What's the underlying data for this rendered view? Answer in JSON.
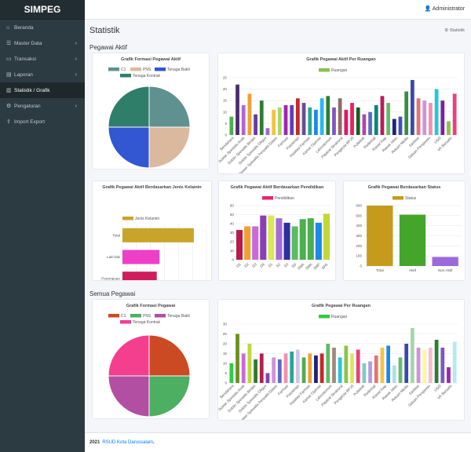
{
  "app": {
    "title": "SIMPEG"
  },
  "topbar": {
    "user": "Administrator"
  },
  "sidebar": {
    "items": [
      {
        "label": "Beranda",
        "icon": "home-icon",
        "glyph": "⌂",
        "chev": ""
      },
      {
        "label": "Master Data",
        "icon": "sliders-icon",
        "glyph": "☰",
        "chev": "‹"
      },
      {
        "label": "Transaksi",
        "icon": "inbox-icon",
        "glyph": "▭",
        "chev": "‹"
      },
      {
        "label": "Laporan",
        "icon": "print-icon",
        "glyph": "▤",
        "chev": "‹"
      },
      {
        "label": "Statistik / Grafik",
        "icon": "chart-icon",
        "glyph": "▥",
        "chev": ""
      },
      {
        "label": "Pengaturan",
        "icon": "gear-icon",
        "glyph": "⚙",
        "chev": "‹"
      },
      {
        "label": "Import Export",
        "icon": "upload-icon",
        "glyph": "⇪",
        "chev": ""
      }
    ]
  },
  "page": {
    "title": "Statistik",
    "breadcrumb": "Statistik",
    "section_active": "Pegawai Aktif",
    "section_all": "Semua Pegawai"
  },
  "footer": {
    "year": "2021",
    "org": "RSUD Kota Darussalam",
    "dot": "."
  },
  "chart_data": [
    {
      "id": "pie_aktif",
      "type": "pie",
      "title": "Grafik Formasi Pegawai Aktif",
      "categories": [
        "C1",
        "PNS",
        "Tenaga Bakti",
        "Tenaga Kontrak"
      ],
      "values": [
        25,
        25,
        25,
        25
      ],
      "colors": [
        "#5f9190",
        "#dbb99f",
        "#3257d3",
        "#2f7e6a"
      ]
    },
    {
      "id": "bar_ruangan_aktif",
      "type": "bar",
      "title": "Grafik Pegawai Aktif Per Ruangan",
      "legend": "Ruangan",
      "legend_color": "#8bc34a",
      "ylim": [
        0,
        25
      ],
      "yticks": [
        0,
        5,
        10,
        15,
        20,
        25
      ],
      "tick_labels": [
        "Bendahara",
        "Dokter Spesialis Anak",
        "Dokter Spesialis Bedah",
        "Dokter Spesialis Obgyn",
        "Dokter Spesialis Penyakit Dalam",
        "Farmasi",
        "Fisioterapi",
        "Instalasi Farmasi",
        "Kamar Operasi",
        "Laboratorium",
        "Pejabat Struktural",
        "Pengelola BPJS",
        "Poliklinik",
        "Radiologi",
        "Rawat Inap",
        "Rawat Jalan",
        "Rekam Medis",
        "Sanitasi",
        "Satuan Pengawas",
        "UGD",
        "VK Bersalin"
      ],
      "values": [
        8,
        22,
        13,
        18,
        9,
        15,
        3,
        11,
        12,
        13,
        13,
        16,
        14,
        12,
        11,
        16,
        17,
        12,
        16,
        11,
        14,
        12,
        9,
        10,
        13,
        17,
        14,
        7,
        8,
        19,
        24,
        16,
        15,
        14,
        20,
        15,
        6,
        18
      ],
      "colors": [
        "#4caf50",
        "#4a2c6e",
        "#b265d0",
        "#f0a030",
        "#6a3a9c",
        "#2e7d32",
        "#9c6ad8",
        "#f5c242",
        "#a8d86a",
        "#9c27b0",
        "#673ab7",
        "#c62828",
        "#6d4c91",
        "#26a69a",
        "#1e88e5",
        "#29b6f6",
        "#2e7d32",
        "#7e57c2",
        "#8d6e63",
        "#d81b60",
        "#e91e63",
        "#1b5e20",
        "#ab47bc",
        "#5c6bc0",
        "#00897b",
        "#c2185b",
        "#66bb6a",
        "#1a237e",
        "#3f51b5",
        "#388e3c",
        "#3949ab",
        "#e57373",
        "#ce93d8",
        "#f48fb1",
        "#26c6da",
        "#7b1fa2",
        "#8bc34a",
        "#ec407a"
      ]
    },
    {
      "id": "hbar_jk",
      "type": "bar",
      "orientation": "horizontal",
      "title": "Grafik Pegawai Aktif Berdasarkan Jenis Kelamin",
      "legend": "Jenis Kelamin",
      "legend_color": "#c8a52a",
      "xlim": [
        0,
        600
      ],
      "xticks": [
        0,
        100,
        200,
        300,
        400,
        500,
        600
      ],
      "categories": [
        "Total",
        "Laki-laki",
        "Perempuan"
      ],
      "values": [
        510,
        265,
        245
      ],
      "colors": [
        "#c8a52a",
        "#ee3fc8",
        "#d01b5c"
      ]
    },
    {
      "id": "bar_pendidikan",
      "type": "bar",
      "title": "Grafik Pegawai Aktif Berdasarkan Pendidikan",
      "legend": "Pendidikan",
      "legend_color": "#e8246f",
      "ylim": [
        0,
        60
      ],
      "yticks": [
        0,
        10,
        20,
        30,
        40,
        50,
        60
      ],
      "categories": [
        "D1",
        "D2",
        "D3",
        "D4",
        "S1",
        "S2",
        "S3",
        "SD",
        "SMA",
        "SMK",
        "SMP",
        "SPK"
      ],
      "values": [
        33,
        37,
        37,
        49,
        49,
        46,
        41,
        37,
        45,
        46,
        41,
        51
      ],
      "colors": [
        "#b81b4c",
        "#f0a030",
        "#c96ad8",
        "#8a3fb2",
        "#d8e85a",
        "#a56ad8",
        "#2e2e9c",
        "#5dbb63",
        "#4caf50",
        "#4caf50",
        "#1e88e5",
        "#c0d83a"
      ]
    },
    {
      "id": "bar_status",
      "type": "bar",
      "title": "Grafik Pegawai Berdasarkan Status",
      "legend": "Status",
      "legend_color": "#c69a1b",
      "ylim": [
        0,
        600
      ],
      "yticks": [
        0,
        100,
        200,
        300,
        400,
        500,
        600
      ],
      "categories": [
        "Total",
        "Aktif",
        "Non Aktif"
      ],
      "values": [
        600,
        510,
        90
      ],
      "colors": [
        "#c69a1b",
        "#44a52a",
        "#9c6ad8"
      ]
    },
    {
      "id": "pie_semua",
      "type": "pie",
      "title": "Grafik Formasi Pegawai",
      "categories": [
        "C1",
        "PNS",
        "Tenaga Bakti",
        "Tenaga Kontrak"
      ],
      "values": [
        25,
        25,
        25,
        25
      ],
      "colors": [
        "#cc4a23",
        "#4caf62",
        "#b24fa2",
        "#f43f8f"
      ]
    },
    {
      "id": "bar_ruangan_semua",
      "type": "bar",
      "title": "Grafik Pegawai Per Ruangan",
      "legend": "Ruangan",
      "legend_color": "#2ecc40",
      "ylim": [
        0,
        30
      ],
      "yticks": [
        0,
        5,
        10,
        15,
        20,
        25,
        30
      ],
      "tick_labels": [
        "Bendahara",
        "Dokter Spesialis Anak",
        "Dokter Spesialis Bedah",
        "Dokter Spesialis Obgyn",
        "Dokter Spesialis Penyakit Dalam",
        "Farmasi",
        "Fisioterapi",
        "Instalasi Farmasi",
        "Kamar Operasi",
        "Laboratorium",
        "Pejabat Struktural",
        "Pengelola BPJS",
        "Poliklinik",
        "Radiologi",
        "Rawat Inap",
        "Rawat Jalan",
        "Rekam Medis",
        "Sanitasi",
        "Satuan Pengawas",
        "UGD",
        "VK Bersalin"
      ],
      "values": [
        10,
        25,
        15,
        20,
        12,
        15,
        5,
        13,
        12,
        15,
        16,
        17,
        13,
        15,
        14,
        15,
        20,
        18,
        13,
        19,
        15,
        17,
        10,
        11,
        14,
        18,
        19,
        9,
        13,
        20,
        28,
        18,
        17,
        18,
        22,
        18,
        8,
        21
      ],
      "colors": [
        "#2ecc40",
        "#6b8e23",
        "#c96ad8",
        "#c0d83a",
        "#2e7d32",
        "#b81b4c",
        "#8a3fb2",
        "#ce93d8",
        "#5c6bc0",
        "#f48fb1",
        "#26a69a",
        "#d1c4e9",
        "#4caf50",
        "#f0a030",
        "#1a237e",
        "#c62828",
        "#5dbb63",
        "#a1887f",
        "#26c6da",
        "#8bc34a",
        "#d8e85a",
        "#ec407a",
        "#80cbc4",
        "#b39ddb",
        "#e57373",
        "#f5c242",
        "#1e88e5",
        "#b2dfdb",
        "#66bb6a",
        "#3949ab",
        "#a5d6a7",
        "#ce93d8",
        "#fff59d",
        "#f8bbd0",
        "#2e7d32",
        "#7e57c2",
        "#9c27b0",
        "#b2ebf2"
      ]
    }
  ]
}
